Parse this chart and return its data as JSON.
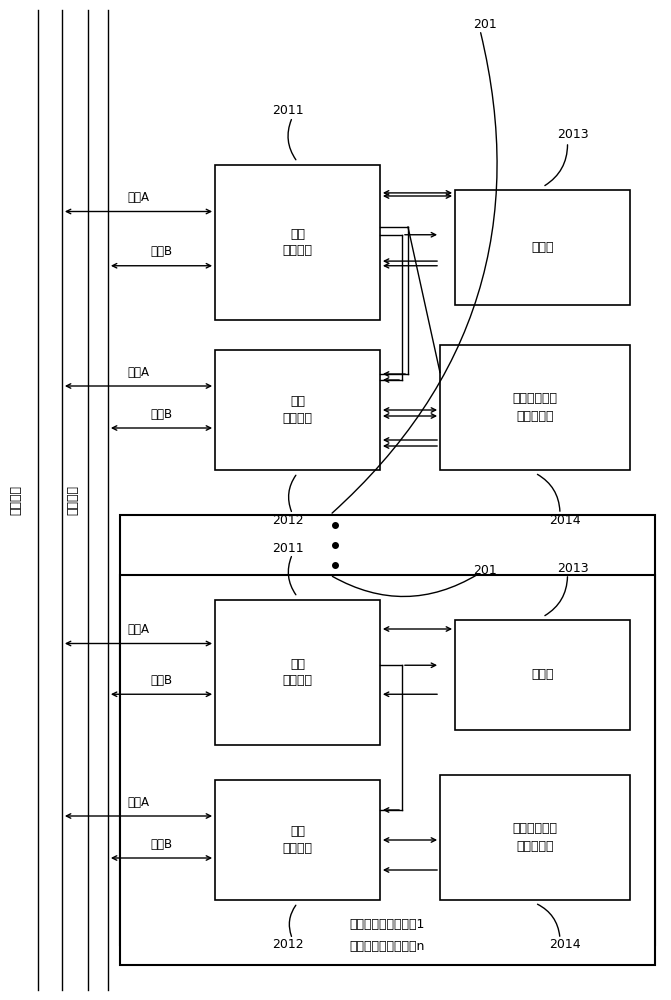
{
  "bg_color": "#ffffff",
  "line_color": "#000000",
  "fig_width": 6.71,
  "fig_height": 10.0,
  "title_label": "201",
  "terminal1_label": "高低速共存总线终端1",
  "terminaln_label": "高低速共存总线终端n",
  "label_2011": "2011",
  "label_2012": "2012",
  "label_2013": "2013",
  "label_2014": "2014",
  "high_speed_label": "高速\n接口组件",
  "low_speed_label": "低速\n接口组件",
  "memory_label": "存储器",
  "control_label": "高低速接口组\n件控制模块",
  "channel_A": "通道A",
  "channel_B": "通道B",
  "main_bus_label": "主要总线",
  "secondary_bus_label": "次要总线"
}
